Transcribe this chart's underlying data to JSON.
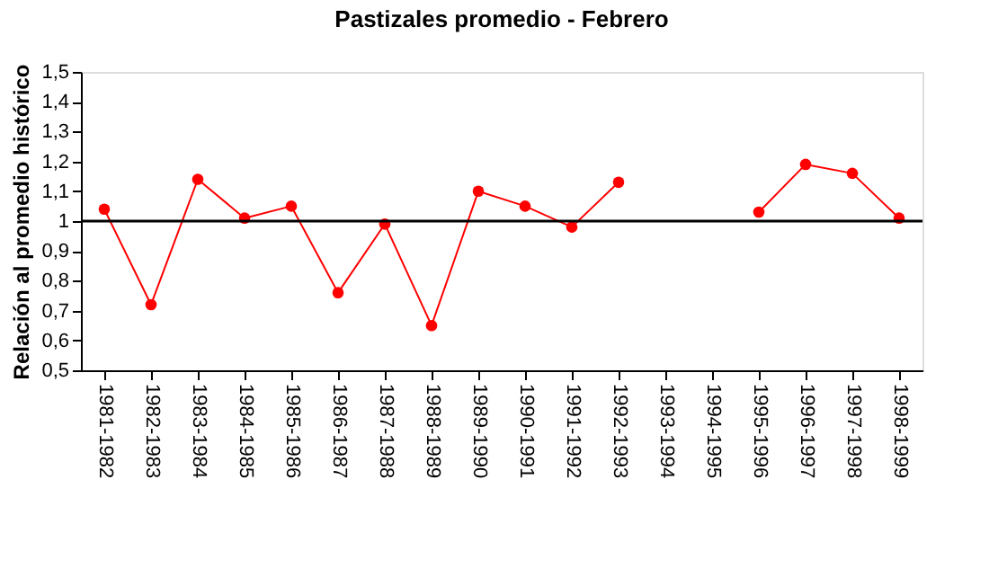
{
  "chart_data": {
    "type": "line",
    "title": "Pastizales promedio - Febrero",
    "ylabel": "Relación al promedio histórico",
    "categories": [
      "1981-1982",
      "1982-1983",
      "1983-1984",
      "1984-1985",
      "1985-1986",
      "1986-1987",
      "1987-1988",
      "1988-1989",
      "1989-1990",
      "1990-1991",
      "1991-1992",
      "1992-1993",
      "1993-1994",
      "1994-1995",
      "1995-1996",
      "1996-1997",
      "1997-1998",
      "1998-1999"
    ],
    "series": [
      {
        "color": "#ff0000",
        "values": [
          1.04,
          0.72,
          1.14,
          1.01,
          1.05,
          0.76,
          0.99,
          0.65,
          1.1,
          1.05,
          0.98,
          1.13,
          null,
          null,
          1.03,
          1.19,
          1.16,
          1.01
        ]
      }
    ],
    "ylim": [
      0.5,
      1.5
    ],
    "yticks": [
      {
        "value": 0.5,
        "label": "0,5"
      },
      {
        "value": 0.6,
        "label": "0,6"
      },
      {
        "value": 0.7,
        "label": "0,7"
      },
      {
        "value": 0.8,
        "label": "0,8"
      },
      {
        "value": 0.9,
        "label": "0,9"
      },
      {
        "value": 1,
        "label": "1"
      },
      {
        "value": 1.1,
        "label": "1,1"
      },
      {
        "value": 1.2,
        "label": "1,2"
      },
      {
        "value": 1.3,
        "label": "1,3"
      },
      {
        "value": 1.4,
        "label": "1,4"
      },
      {
        "value": 1.5,
        "label": "1,5"
      }
    ],
    "ref_lines": [
      {
        "axis": "y",
        "value": 1,
        "color": "#000000"
      }
    ],
    "marker": "circle",
    "line_style": "solid",
    "grid": false
  }
}
